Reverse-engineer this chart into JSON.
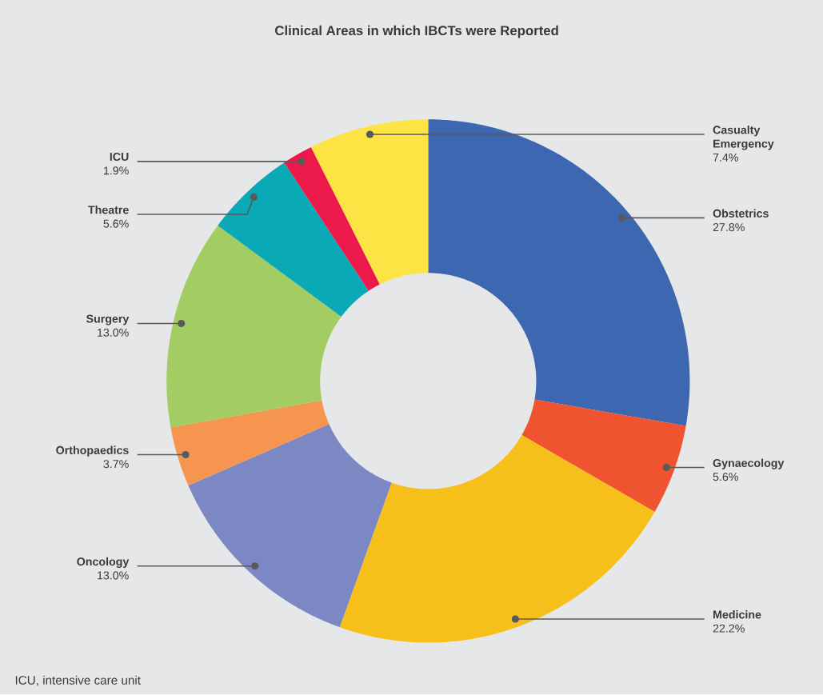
{
  "chart_data": {
    "type": "donut",
    "title": "Clinical Areas in which IBCTs were Reported",
    "categories": [
      "Obstetrics",
      "Gynaecology",
      "Medicine",
      "Oncology",
      "Orthopaedics",
      "Surgery",
      "Theatre",
      "ICU",
      "Casualty Emergency"
    ],
    "values": [
      27.8,
      5.6,
      22.2,
      13.0,
      3.7,
      13.0,
      5.6,
      1.9,
      7.4
    ],
    "colors": [
      "#3d68b1",
      "#f05330",
      "#f7bf1a",
      "#7b88c4",
      "#f6954f",
      "#a3cd62",
      "#0aa9b6",
      "#ec1a4b",
      "#fde444"
    ],
    "value_labels": [
      "27.8%",
      "5.6%",
      "22.2%",
      "13.0%",
      "3.7%",
      "13.0%",
      "5.6%",
      "1.9%",
      "7.4%"
    ],
    "annotations": [
      "ICU, intensive care unit"
    ]
  }
}
